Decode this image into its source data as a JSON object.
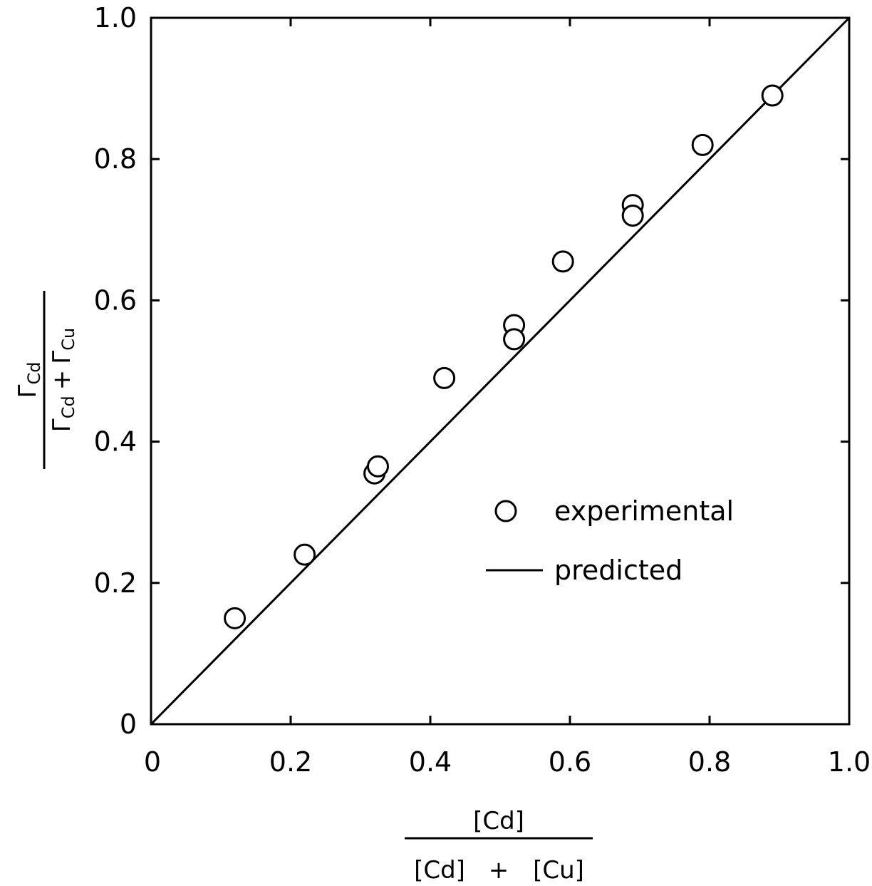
{
  "chart_data": {
    "type": "scatter",
    "xlabel": {
      "numerator": "[Cd]",
      "denominator_left": "[Cd]",
      "operator": "+",
      "denominator_right": "[Cu]"
    },
    "ylabel": {
      "numerator": "Γ",
      "numerator_sub": "Cd",
      "denominator_left": "Γ",
      "denominator_left_sub": "Cd",
      "operator": "+",
      "denominator_right": "Γ",
      "denominator_right_sub": "Cu"
    },
    "xlim": [
      0,
      1.0
    ],
    "ylim": [
      0,
      1.0
    ],
    "x_ticks": [
      "0",
      "0.2",
      "0.4",
      "0.6",
      "0.8",
      "1.0"
    ],
    "y_ticks": [
      "0",
      "0.2",
      "0.4",
      "0.6",
      "0.8",
      "1.0"
    ],
    "grid": false,
    "legend_position": "center-right",
    "series": [
      {
        "name": "experimental",
        "marker": "open-circle",
        "points": [
          [
            0.12,
            0.15
          ],
          [
            0.22,
            0.24
          ],
          [
            0.32,
            0.355
          ],
          [
            0.325,
            0.365
          ],
          [
            0.42,
            0.49
          ],
          [
            0.52,
            0.565
          ],
          [
            0.52,
            0.545
          ],
          [
            0.59,
            0.655
          ],
          [
            0.69,
            0.735
          ],
          [
            0.69,
            0.72
          ],
          [
            0.79,
            0.82
          ],
          [
            0.89,
            0.89
          ]
        ]
      },
      {
        "name": "predicted",
        "marker": "line",
        "points": [
          [
            0,
            0
          ],
          [
            1.0,
            1.0
          ]
        ]
      }
    ]
  }
}
